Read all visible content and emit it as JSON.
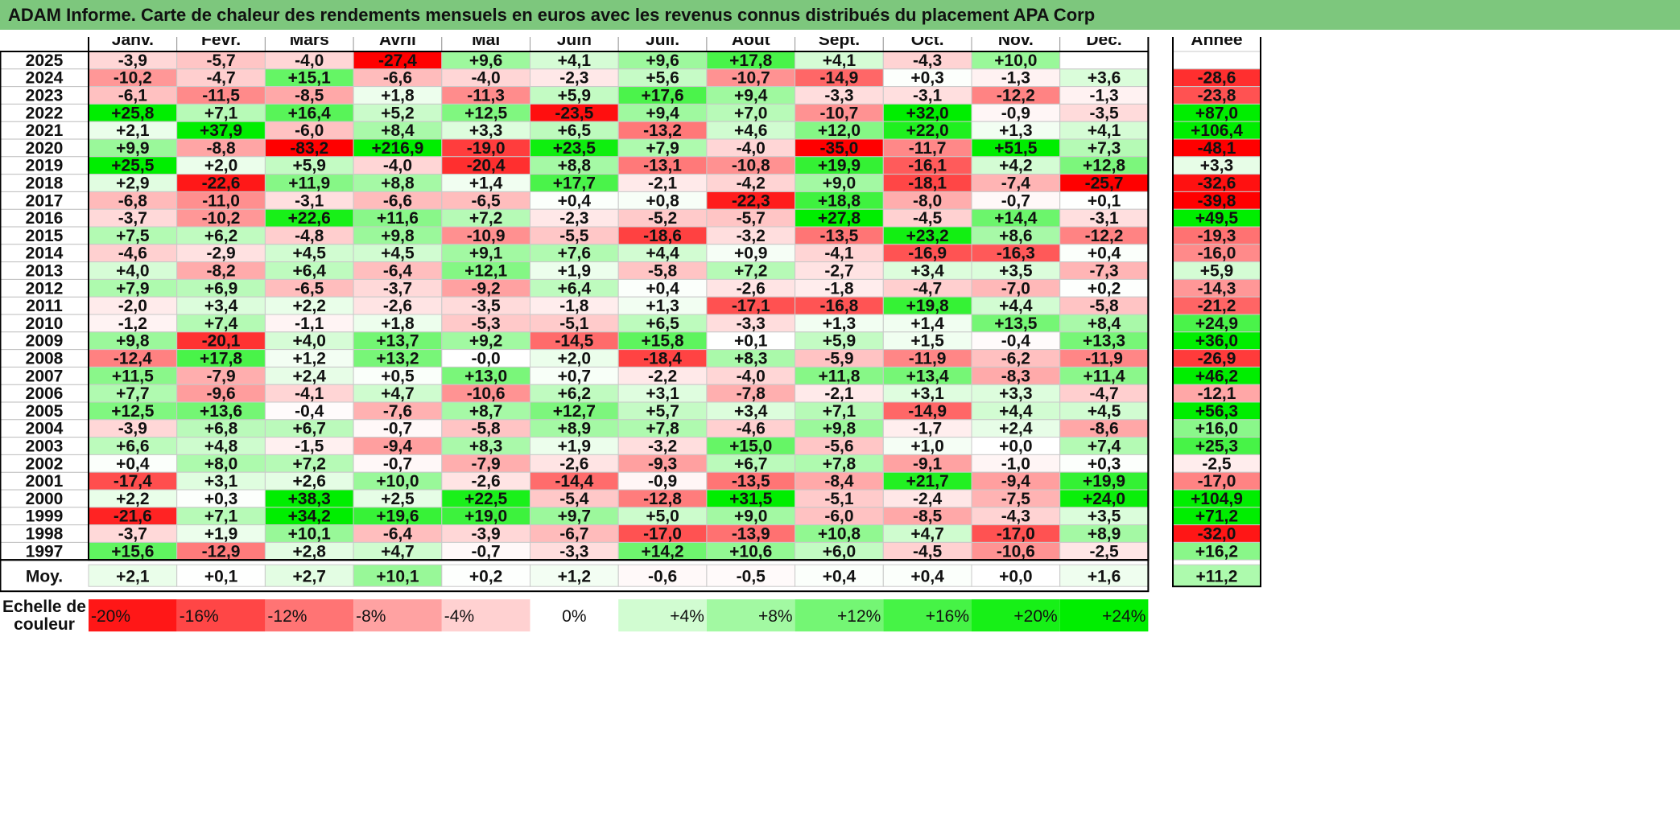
{
  "title": "ADAM Informe. Carte de chaleur des rendements mensuels en euros avec les revenus connus distribués du placement APA Corp",
  "chart_data": {
    "type": "heatmap",
    "columns": [
      "Janv.",
      "Févr.",
      "Mars",
      "Avril",
      "Mai",
      "Juin",
      "Juil.",
      "Août",
      "Sept.",
      "Oct.",
      "Nov.",
      "Déc."
    ],
    "annual_label": "Année",
    "rows": [
      {
        "year": "2025",
        "values": [
          "-3,9",
          "-5,7",
          "-4,0",
          "-27,4",
          "+9,6",
          "+4,1",
          "+9,6",
          "+17,8",
          "+4,1",
          "-4,3",
          "+10,0",
          ""
        ],
        "annual": ""
      },
      {
        "year": "2024",
        "values": [
          "-10,2",
          "-4,7",
          "+15,1",
          "-6,6",
          "-4,0",
          "-2,3",
          "+5,6",
          "-10,7",
          "-14,9",
          "+0,3",
          "-1,3",
          "+3,6"
        ],
        "annual": "-28,6"
      },
      {
        "year": "2023",
        "values": [
          "-6,1",
          "-11,5",
          "-8,5",
          "+1,8",
          "-11,3",
          "+5,9",
          "+17,6",
          "+9,4",
          "-3,3",
          "-3,1",
          "-12,2",
          "-1,3"
        ],
        "annual": "-23,8"
      },
      {
        "year": "2022",
        "values": [
          "+25,8",
          "+7,1",
          "+16,4",
          "+5,2",
          "+12,5",
          "-23,5",
          "+9,4",
          "+7,0",
          "-10,7",
          "+32,0",
          "-0,9",
          "-3,5"
        ],
        "annual": "+87,0"
      },
      {
        "year": "2021",
        "values": [
          "+2,1",
          "+37,9",
          "-6,0",
          "+8,4",
          "+3,3",
          "+6,5",
          "-13,2",
          "+4,6",
          "+12,0",
          "+22,0",
          "+1,3",
          "+4,1"
        ],
        "annual": "+106,4"
      },
      {
        "year": "2020",
        "values": [
          "+9,9",
          "-8,8",
          "-83,2",
          "+216,9",
          "-19,0",
          "+23,5",
          "+7,9",
          "-4,0",
          "-35,0",
          "-11,7",
          "+51,5",
          "+7,3"
        ],
        "annual": "-48,1"
      },
      {
        "year": "2019",
        "values": [
          "+25,5",
          "+2,0",
          "+5,9",
          "-4,0",
          "-20,4",
          "+8,8",
          "-13,1",
          "-10,8",
          "+19,9",
          "-16,1",
          "+4,2",
          "+12,8"
        ],
        "annual": "+3,3"
      },
      {
        "year": "2018",
        "values": [
          "+2,9",
          "-22,6",
          "+11,9",
          "+8,8",
          "+1,4",
          "+17,7",
          "-2,1",
          "-4,2",
          "+9,0",
          "-18,1",
          "-7,4",
          "-25,7"
        ],
        "annual": "-32,6"
      },
      {
        "year": "2017",
        "values": [
          "-6,8",
          "-11,0",
          "-3,1",
          "-6,6",
          "-6,5",
          "+0,4",
          "+0,8",
          "-22,3",
          "+18,8",
          "-8,0",
          "-0,7",
          "+0,1"
        ],
        "annual": "-39,8"
      },
      {
        "year": "2016",
        "values": [
          "-3,7",
          "-10,2",
          "+22,6",
          "+11,6",
          "+7,2",
          "-2,3",
          "-5,2",
          "-5,7",
          "+27,8",
          "-4,5",
          "+14,4",
          "-3,1"
        ],
        "annual": "+49,5"
      },
      {
        "year": "2015",
        "values": [
          "+7,5",
          "+6,2",
          "-4,8",
          "+9,8",
          "-10,9",
          "-5,5",
          "-18,6",
          "-3,2",
          "-13,5",
          "+23,2",
          "+8,6",
          "-12,2"
        ],
        "annual": "-19,3"
      },
      {
        "year": "2014",
        "values": [
          "-4,6",
          "-2,9",
          "+4,5",
          "+4,5",
          "+9,1",
          "+7,6",
          "+4,4",
          "+0,9",
          "-4,1",
          "-16,9",
          "-16,3",
          "+0,4"
        ],
        "annual": "-16,0"
      },
      {
        "year": "2013",
        "values": [
          "+4,0",
          "-8,2",
          "+6,4",
          "-6,4",
          "+12,1",
          "+1,9",
          "-5,8",
          "+7,2",
          "-2,7",
          "+3,4",
          "+3,5",
          "-7,3"
        ],
        "annual": "+5,9"
      },
      {
        "year": "2012",
        "values": [
          "+7,9",
          "+6,9",
          "-6,5",
          "-3,7",
          "-9,2",
          "+6,4",
          "+0,4",
          "-2,6",
          "-1,8",
          "-4,7",
          "-7,0",
          "+0,2"
        ],
        "annual": "-14,3"
      },
      {
        "year": "2011",
        "values": [
          "-2,0",
          "+3,4",
          "+2,2",
          "-2,6",
          "-3,5",
          "-1,8",
          "+1,3",
          "-17,1",
          "-16,8",
          "+19,8",
          "+4,4",
          "-5,8"
        ],
        "annual": "-21,2"
      },
      {
        "year": "2010",
        "values": [
          "-1,2",
          "+7,4",
          "-1,1",
          "+1,8",
          "-5,3",
          "-5,1",
          "+6,5",
          "-3,3",
          "+1,3",
          "+1,4",
          "+13,5",
          "+8,4"
        ],
        "annual": "+24,9"
      },
      {
        "year": "2009",
        "values": [
          "+9,8",
          "-20,1",
          "+4,0",
          "+13,7",
          "+9,2",
          "-14,5",
          "+15,8",
          "+0,1",
          "+5,9",
          "+1,5",
          "-0,4",
          "+13,3"
        ],
        "annual": "+36,0"
      },
      {
        "year": "2008",
        "values": [
          "-12,4",
          "+17,8",
          "+1,2",
          "+13,2",
          "-0,0",
          "+2,0",
          "-18,4",
          "+8,3",
          "-5,9",
          "-11,9",
          "-6,2",
          "-11,9"
        ],
        "annual": "-26,9"
      },
      {
        "year": "2007",
        "values": [
          "+11,5",
          "-7,9",
          "+2,4",
          "+0,5",
          "+13,0",
          "+0,7",
          "-2,2",
          "-4,0",
          "+11,8",
          "+13,4",
          "-8,3",
          "+11,4"
        ],
        "annual": "+46,2"
      },
      {
        "year": "2006",
        "values": [
          "+7,7",
          "-9,6",
          "-4,1",
          "+4,7",
          "-10,6",
          "+6,2",
          "+3,1",
          "-7,8",
          "-2,1",
          "+3,1",
          "+3,3",
          "-4,7"
        ],
        "annual": "-12,1"
      },
      {
        "year": "2005",
        "values": [
          "+12,5",
          "+13,6",
          "-0,4",
          "-7,6",
          "+8,7",
          "+12,7",
          "+5,7",
          "+3,4",
          "+7,1",
          "-14,9",
          "+4,4",
          "+4,5"
        ],
        "annual": "+56,3"
      },
      {
        "year": "2004",
        "values": [
          "-3,9",
          "+6,8",
          "+6,7",
          "-0,7",
          "-5,8",
          "+8,9",
          "+7,8",
          "-4,6",
          "+9,8",
          "-1,7",
          "+2,4",
          "-8,6"
        ],
        "annual": "+16,0"
      },
      {
        "year": "2003",
        "values": [
          "+6,6",
          "+4,8",
          "-1,5",
          "-9,4",
          "+8,3",
          "+1,9",
          "-3,2",
          "+15,0",
          "-5,6",
          "+1,0",
          "+0,0",
          "+7,4"
        ],
        "annual": "+25,3"
      },
      {
        "year": "2002",
        "values": [
          "+0,4",
          "+8,0",
          "+7,2",
          "-0,7",
          "-7,9",
          "-2,6",
          "-9,3",
          "+6,7",
          "+7,8",
          "-9,1",
          "-1,0",
          "+0,3"
        ],
        "annual": "-2,5"
      },
      {
        "year": "2001",
        "values": [
          "-17,4",
          "+3,1",
          "+2,6",
          "+10,0",
          "-2,6",
          "-14,4",
          "-0,9",
          "-13,5",
          "-8,4",
          "+21,7",
          "-9,4",
          "+19,9"
        ],
        "annual": "-17,0"
      },
      {
        "year": "2000",
        "values": [
          "+2,2",
          "+0,3",
          "+38,3",
          "+2,5",
          "+22,5",
          "-5,4",
          "-12,8",
          "+31,5",
          "-5,1",
          "-2,4",
          "-7,5",
          "+24,0"
        ],
        "annual": "+104,9"
      },
      {
        "year": "1999",
        "values": [
          "-21,6",
          "+7,1",
          "+34,2",
          "+19,6",
          "+19,0",
          "+9,7",
          "+5,0",
          "+9,0",
          "-6,0",
          "-8,5",
          "-4,3",
          "+3,5"
        ],
        "annual": "+71,2"
      },
      {
        "year": "1998",
        "values": [
          "-3,7",
          "+1,9",
          "+10,1",
          "-6,4",
          "-3,9",
          "-6,7",
          "-17,0",
          "-13,9",
          "+10,8",
          "+4,7",
          "-17,0",
          "+8,9"
        ],
        "annual": "-32,0"
      },
      {
        "year": "1997",
        "values": [
          "+15,6",
          "-12,9",
          "+2,8",
          "+4,7",
          "-0,7",
          "-3,3",
          "+14,2",
          "+10,6",
          "+6,0",
          "-4,5",
          "-10,6",
          "-2,5"
        ],
        "annual": "+16,2"
      }
    ],
    "average": {
      "label": "Moy.",
      "values": [
        "+2,1",
        "+0,1",
        "+2,7",
        "+10,1",
        "+0,2",
        "+1,2",
        "-0,6",
        "-0,5",
        "+0,4",
        "+0,4",
        "+0,0",
        "+1,6"
      ],
      "annual": "+11,2"
    },
    "scale": {
      "label_line1": "Echelle de",
      "label_line2": "couleur",
      "items": [
        {
          "label": "-20%",
          "value": -20
        },
        {
          "label": "-16%",
          "value": -16
        },
        {
          "label": "-12%",
          "value": -12
        },
        {
          "label": "-8%",
          "value": -8
        },
        {
          "label": "-4%",
          "value": -4
        },
        {
          "label": "0%",
          "value": 0
        },
        {
          "label": "+4%",
          "value": 4
        },
        {
          "label": "+8%",
          "value": 8
        },
        {
          "label": "+12%",
          "value": 12
        },
        {
          "label": "+16%",
          "value": 16
        },
        {
          "label": "+20%",
          "value": 20
        },
        {
          "label": "+24%",
          "value": 24
        }
      ]
    },
    "colors": {
      "negative": "#ff0000",
      "neutral": "#ffffff",
      "positive": "#00ee00",
      "header_bg": "#7dc77d",
      "border": "#000000"
    }
  }
}
